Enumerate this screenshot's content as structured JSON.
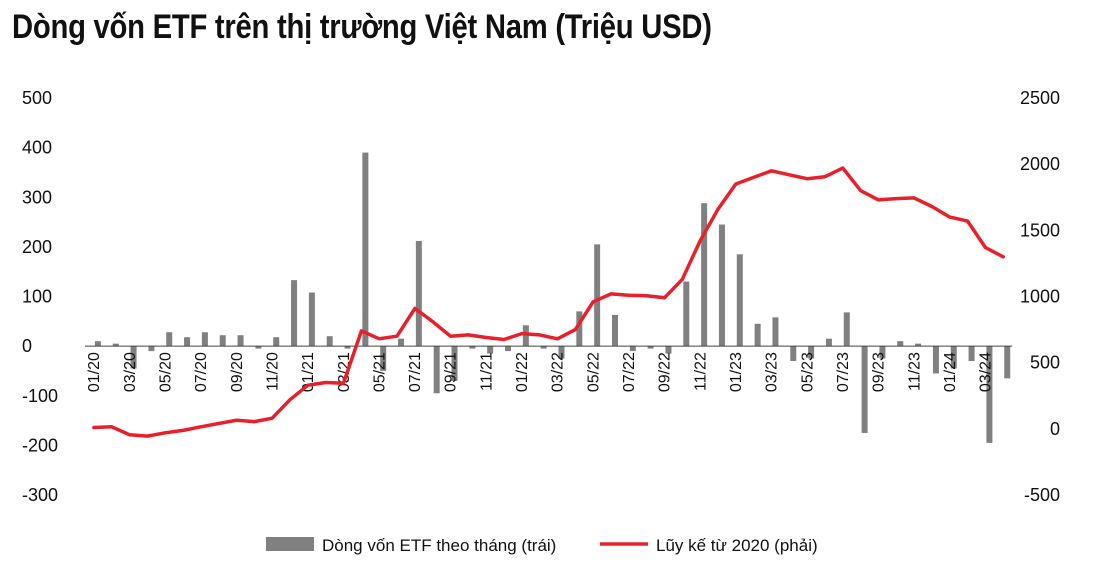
{
  "chart_data": {
    "type": "bar",
    "title": "Dòng vốn ETF trên thị trường Việt Nam (Triệu USD)",
    "categories": [
      "01/20",
      "02/20",
      "03/20",
      "04/20",
      "05/20",
      "06/20",
      "07/20",
      "08/20",
      "09/20",
      "10/20",
      "11/20",
      "12/20",
      "01/21",
      "02/21",
      "03/21",
      "04/21",
      "05/21",
      "06/21",
      "07/21",
      "08/21",
      "09/21",
      "10/21",
      "11/21",
      "12/21",
      "01/22",
      "02/22",
      "03/22",
      "04/22",
      "05/22",
      "06/22",
      "07/22",
      "08/22",
      "09/22",
      "10/22",
      "11/22",
      "12/22",
      "01/23",
      "02/23",
      "03/23",
      "04/23",
      "05/23",
      "06/23",
      "07/23",
      "08/23",
      "09/23",
      "10/23",
      "11/23",
      "12/23",
      "01/24",
      "02/24",
      "03/24",
      "04/24"
    ],
    "x_tick_labels": [
      "01/20",
      "03/20",
      "05/20",
      "07/20",
      "09/20",
      "11/20",
      "01/21",
      "03/21",
      "05/21",
      "07/21",
      "09/21",
      "11/21",
      "01/22",
      "03/22",
      "05/22",
      "07/22",
      "09/22",
      "11/22",
      "01/23",
      "03/23",
      "05/23",
      "07/23",
      "09/23",
      "11/23",
      "01/24",
      "03/24"
    ],
    "series": [
      {
        "name": "Dòng vốn ETF theo tháng (trái)",
        "type": "bar",
        "axis": "left",
        "color": "#808080",
        "values": [
          10,
          5,
          -45,
          -10,
          28,
          18,
          28,
          22,
          22,
          -5,
          18,
          133,
          108,
          20,
          -5,
          390,
          -50,
          15,
          212,
          -95,
          -70,
          -5,
          -15,
          -10,
          42,
          -5,
          -25,
          70,
          205,
          63,
          -10,
          -5,
          -15,
          130,
          288,
          245,
          185,
          45,
          58,
          -30,
          -25,
          15,
          68,
          -175,
          -25,
          10,
          5,
          -55,
          -45,
          -30,
          -195,
          -65
        ]
      },
      {
        "name": "Lũy kế từ 2020 (phải)",
        "type": "line",
        "axis": "right",
        "color": "#e8202b",
        "values": [
          10,
          15,
          -45,
          -55,
          -30,
          -12,
          15,
          40,
          65,
          55,
          80,
          220,
          330,
          350,
          345,
          740,
          680,
          700,
          910,
          810,
          700,
          710,
          690,
          675,
          720,
          710,
          680,
          750,
          960,
          1020,
          1010,
          1005,
          990,
          1130,
          1420,
          1660,
          1850,
          1900,
          1950,
          1920,
          1890,
          1905,
          1970,
          1800,
          1730,
          1740,
          1745,
          1680,
          1600,
          1570,
          1370,
          1300
        ]
      }
    ],
    "y_left": {
      "ticks": [
        "500",
        "400",
        "300",
        "200",
        "100",
        "0",
        "-100",
        "-200",
        "-300"
      ],
      "ylim": [
        -300,
        500
      ]
    },
    "y_right": {
      "ticks": [
        "2500",
        "2000",
        "1500",
        "1000",
        "500",
        "0",
        "-500"
      ],
      "ylim": [
        -500,
        2500
      ]
    },
    "legend_position": "bottom",
    "grid": false
  }
}
